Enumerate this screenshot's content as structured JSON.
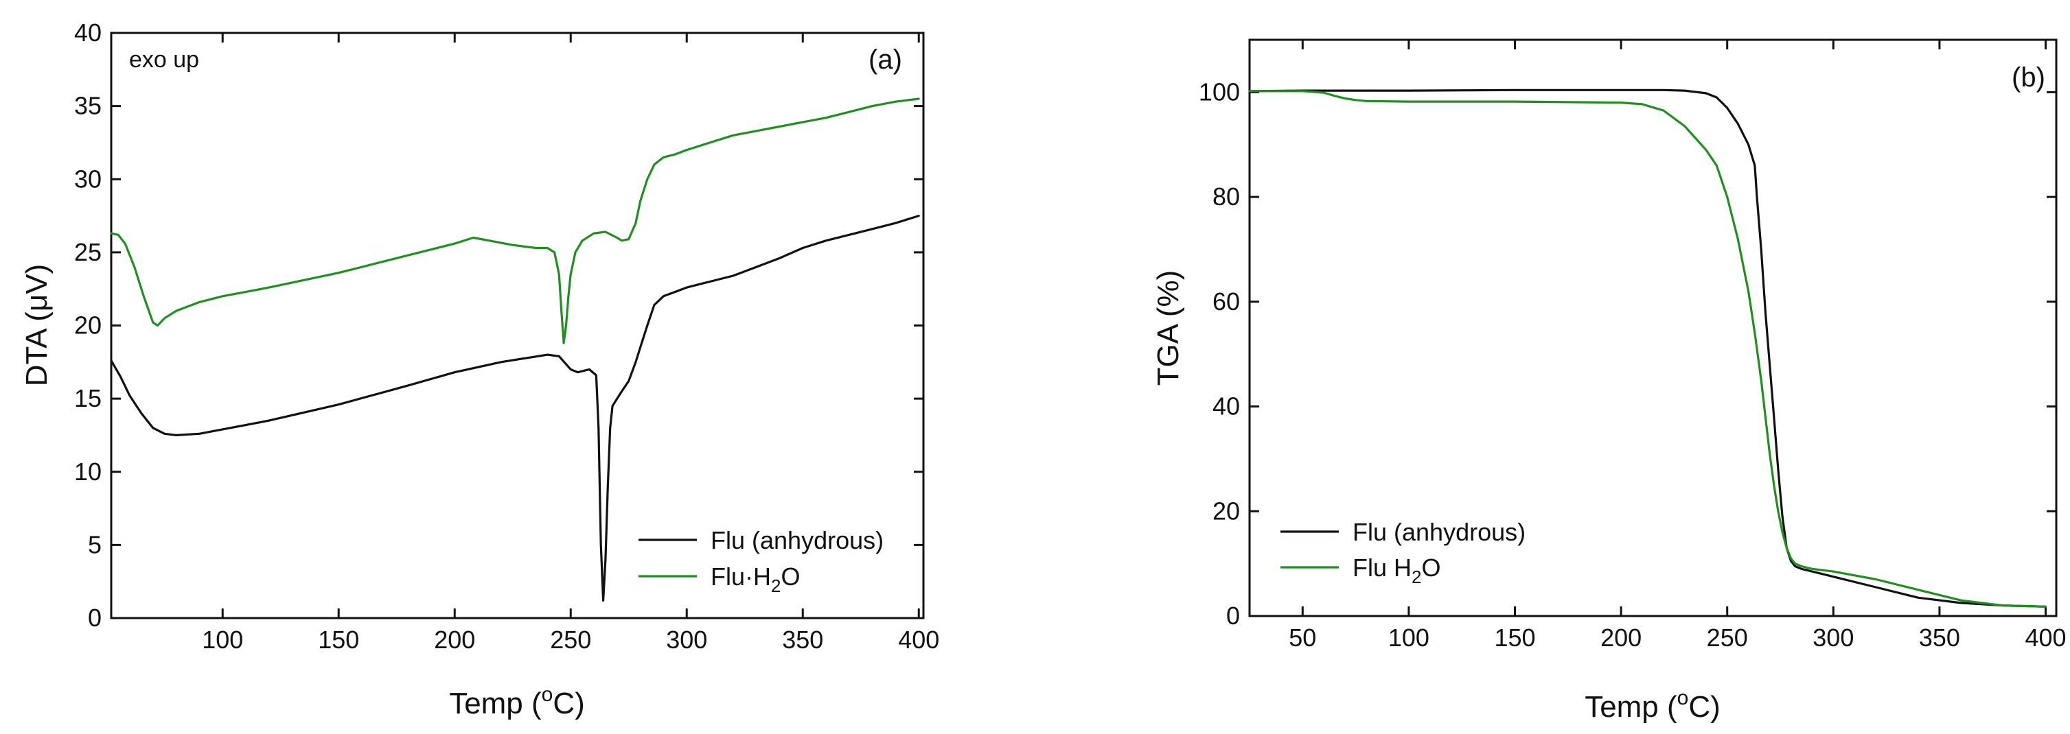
{
  "chart_data": [
    {
      "type": "line",
      "panel_label": "(a)",
      "annotation": "exo up",
      "xlabel": "Temp (",
      "xlabel_sup": "o",
      "xlabel_unit": "C)",
      "ylabel": "DTA (",
      "ylabel_mu": "μ",
      "ylabel_unit": "V)",
      "xlim": [
        52,
        402
      ],
      "ylim": [
        0,
        40
      ],
      "xticks": [
        100,
        150,
        200,
        250,
        300,
        350,
        400
      ],
      "yticks": [
        0,
        5,
        10,
        15,
        20,
        25,
        30,
        35,
        40
      ],
      "grid": false,
      "legend_position": "bottom-right",
      "series": [
        {
          "name": "Flu (anhydrous)",
          "color": "#111111",
          "x": [
            52,
            56,
            60,
            65,
            70,
            75,
            80,
            90,
            100,
            120,
            150,
            180,
            200,
            220,
            240,
            245,
            250,
            253,
            258,
            261,
            262,
            263,
            264,
            265,
            266,
            267,
            268,
            270,
            272,
            275,
            278,
            280,
            283,
            286,
            290,
            295,
            300,
            310,
            320,
            330,
            340,
            350,
            360,
            370,
            380,
            390,
            400
          ],
          "y": [
            17.6,
            16.5,
            15.2,
            14,
            13,
            12.6,
            12.5,
            12.6,
            12.9,
            13.5,
            14.6,
            15.9,
            16.8,
            17.5,
            18,
            17.9,
            17,
            16.8,
            17,
            16.6,
            13,
            5,
            1.2,
            4,
            9,
            13,
            14.5,
            15,
            15.5,
            16.2,
            17.5,
            18.5,
            20,
            21.4,
            22,
            22.3,
            22.6,
            23,
            23.4,
            24,
            24.6,
            25.3,
            25.8,
            26.2,
            26.6,
            27,
            27.5
          ]
        },
        {
          "name": "Flu·H",
          "name_sub": "2",
          "name_end": "O",
          "color": "#1f8f1f",
          "x": [
            52,
            55,
            58,
            62,
            66,
            70,
            72,
            75,
            80,
            90,
            100,
            120,
            150,
            180,
            200,
            208,
            215,
            225,
            235,
            240,
            243,
            245,
            246,
            247,
            248,
            249,
            250,
            252,
            255,
            260,
            265,
            270,
            272,
            275,
            278,
            280,
            283,
            286,
            290,
            295,
            300,
            310,
            320,
            330,
            340,
            350,
            360,
            370,
            380,
            390,
            400
          ],
          "y": [
            26.3,
            26.2,
            25.6,
            24,
            22,
            20.2,
            20,
            20.5,
            21,
            21.6,
            22,
            22.6,
            23.6,
            24.8,
            25.6,
            26,
            25.8,
            25.5,
            25.3,
            25.3,
            25,
            23.5,
            21,
            18.8,
            20,
            22,
            23.5,
            25,
            25.8,
            26.3,
            26.4,
            26,
            25.8,
            25.9,
            27,
            28.5,
            30,
            31,
            31.5,
            31.7,
            32,
            32.5,
            33,
            33.3,
            33.6,
            33.9,
            34.2,
            34.6,
            35,
            35.3,
            35.5
          ]
        }
      ]
    },
    {
      "type": "line",
      "panel_label": "(b)",
      "xlabel": "Temp (",
      "xlabel_sup": "o",
      "xlabel_unit": "C)",
      "ylabel": "TGA (%)",
      "xlim": [
        25,
        405
      ],
      "ylim": [
        0,
        110
      ],
      "xticks": [
        50,
        100,
        150,
        200,
        250,
        300,
        350,
        400
      ],
      "yticks": [
        0,
        20,
        40,
        60,
        80,
        100
      ],
      "grid": false,
      "legend_position": "bottom-left",
      "series": [
        {
          "name": "Flu (anhydrous)",
          "color": "#111111",
          "x": [
            25,
            50,
            100,
            150,
            200,
            220,
            230,
            240,
            245,
            250,
            255,
            260,
            263,
            264,
            266,
            268,
            270,
            272,
            274,
            276,
            278,
            280,
            282,
            285,
            290,
            300,
            320,
            340,
            360,
            380,
            400
          ],
          "y": [
            100.2,
            100.3,
            100.3,
            100.4,
            100.4,
            100.4,
            100.3,
            99.8,
            99,
            97,
            94,
            90,
            86,
            80,
            70,
            58,
            48,
            38,
            28,
            19,
            13,
            10.5,
            9.5,
            9,
            8.5,
            7.5,
            5.5,
            3.5,
            2.5,
            2,
            1.8
          ]
        },
        {
          "name": "Flu H",
          "name_sub": "2",
          "name_end": "O",
          "color": "#1f8f1f",
          "x": [
            25,
            50,
            60,
            65,
            70,
            75,
            80,
            100,
            150,
            200,
            210,
            220,
            230,
            240,
            245,
            250,
            255,
            260,
            263,
            266,
            268,
            270,
            272,
            274,
            276,
            278,
            280,
            282,
            285,
            290,
            300,
            320,
            340,
            360,
            380,
            400
          ],
          "y": [
            100.2,
            100.2,
            99.9,
            99.3,
            98.8,
            98.5,
            98.3,
            98.2,
            98.2,
            98,
            97.7,
            96.5,
            93.5,
            89,
            86,
            80,
            72,
            62,
            54,
            45,
            38,
            31,
            25,
            20,
            16,
            13,
            11,
            10,
            9.5,
            9,
            8.5,
            7,
            5,
            3,
            2,
            1.8
          ]
        }
      ]
    }
  ]
}
